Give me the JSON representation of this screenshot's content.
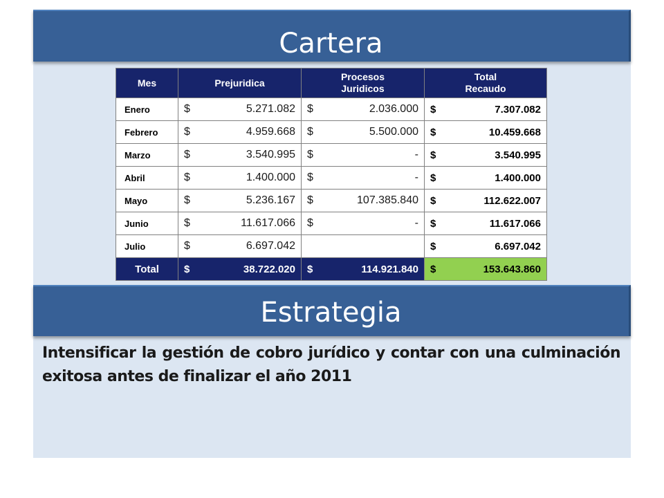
{
  "sections": {
    "cartera_title": "Cartera",
    "estrategia_title": "Estrategia"
  },
  "table": {
    "headers": [
      "Mes",
      "Prejuridica",
      "Procesos\nJuridicos",
      "Total\nRecaudo"
    ],
    "currency": "$",
    "rows": [
      {
        "mes": "Enero",
        "prejuridica": "5.271.082",
        "procesos": "2.036.000",
        "total": "7.307.082"
      },
      {
        "mes": "Febrero",
        "prejuridica": "4.959.668",
        "procesos": "5.500.000",
        "total": "10.459.668"
      },
      {
        "mes": "Marzo",
        "prejuridica": "3.540.995",
        "procesos": "-",
        "total": "3.540.995"
      },
      {
        "mes": "Abril",
        "prejuridica": "1.400.000",
        "procesos": "-",
        "total": "1.400.000"
      },
      {
        "mes": "Mayo",
        "prejuridica": "5.236.167",
        "procesos": "107.385.840",
        "total": "112.622.007"
      },
      {
        "mes": "Junio",
        "prejuridica": "11.617.066",
        "procesos": "-",
        "total": "11.617.066"
      },
      {
        "mes": "Julio",
        "prejuridica": "6.697.042",
        "procesos": "",
        "total": "6.697.042"
      }
    ],
    "total_row": {
      "mes": "Total",
      "prejuridica": "38.722.020",
      "procesos": "114.921.840",
      "total": "153.643.860"
    }
  },
  "strategy_text": "Intensificar la gestión de cobro jurídico y contar con una culminación exitosa antes de finalizar el año 2011",
  "colors": {
    "banner": "#376096",
    "panel": "#dce6f2",
    "table_header": "#17246b",
    "grand_total": "#92d050"
  }
}
